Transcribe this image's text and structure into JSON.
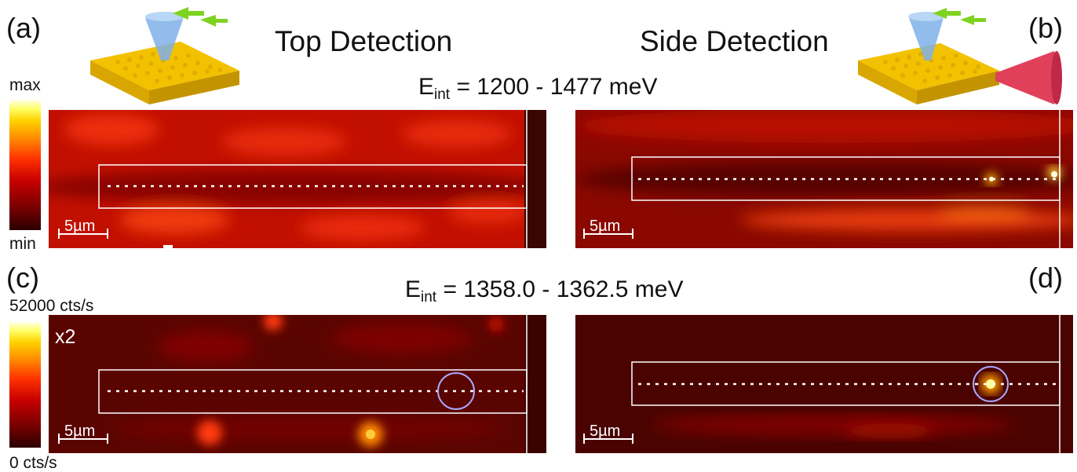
{
  "panel_labels": {
    "a": "(a)",
    "b": "(b)",
    "c": "(c)",
    "d": "(d)"
  },
  "titles": {
    "top": "Top Detection",
    "side": "Side Detection"
  },
  "energy_ranges": [
    {
      "symbol": "E",
      "subscript": "int",
      "range": "= 1200 - 1477 meV"
    },
    {
      "symbol": "E",
      "subscript": "int",
      "range": "= 1358.0 - 1362.5 meV"
    }
  ],
  "colorbars": [
    {
      "max_label": "max",
      "min_label": "min"
    },
    {
      "max_label": "52000 cts/s",
      "min_label": "0 cts/s"
    }
  ],
  "scale_bar_label": "5µm",
  "multiplier_label": "x2",
  "colors": {
    "colormap": [
      "#2b0000",
      "#7a0000",
      "#c80000",
      "#ff3300",
      "#ff8a00",
      "#ffd200",
      "#ffffe8"
    ],
    "waveguide_outline": "#ffffff",
    "marker_circle": "#a9a9ff",
    "gold": "#f2c200",
    "objective_cone": "#7fb0e8",
    "side_cone": "#e0405a",
    "arrow": "#7ed321"
  }
}
